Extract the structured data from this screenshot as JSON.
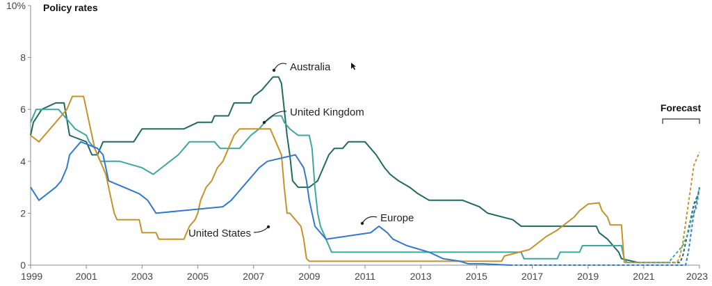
{
  "chart_data": {
    "type": "line",
    "title": "Policy rates",
    "xlabel": "",
    "ylabel": "",
    "xlim": [
      1999,
      2023
    ],
    "ylim": [
      0,
      10
    ],
    "y_ticks": [
      "0",
      "2",
      "4",
      "6",
      "8",
      "10%"
    ],
    "y_tick_values": [
      0,
      2,
      4,
      6,
      8,
      10
    ],
    "x_ticks": [
      "1999",
      "2001",
      "2003",
      "2005",
      "2007",
      "2009",
      "2011",
      "2013",
      "2015",
      "2017",
      "2019",
      "2021",
      "2023"
    ],
    "x_tick_values": [
      1999,
      2001,
      2003,
      2005,
      2007,
      2009,
      2011,
      2013,
      2015,
      2017,
      2019,
      2021,
      2023
    ],
    "forecast_label": "Forecast",
    "forecast_start": 2021.75,
    "grid": false,
    "series": [
      {
        "name": "Australia",
        "color": "#1e6b5e",
        "data": [
          [
            1999,
            5.0
          ],
          [
            1999.1,
            5.5
          ],
          [
            1999.4,
            6.0
          ],
          [
            1999.9,
            6.25
          ],
          [
            2000.2,
            6.25
          ],
          [
            2000.4,
            5.0
          ],
          [
            2001.0,
            4.75
          ],
          [
            2001.2,
            4.25
          ],
          [
            2001.4,
            4.25
          ],
          [
            2001.6,
            4.75
          ],
          [
            2002.5,
            4.75
          ],
          [
            2002.7,
            4.75
          ],
          [
            2003.0,
            5.25
          ],
          [
            2004.5,
            5.25
          ],
          [
            2005.0,
            5.5
          ],
          [
            2005.5,
            5.5
          ],
          [
            2005.6,
            5.75
          ],
          [
            2006.1,
            5.75
          ],
          [
            2006.3,
            6.25
          ],
          [
            2006.9,
            6.25
          ],
          [
            2007.0,
            6.5
          ],
          [
            2007.3,
            6.75
          ],
          [
            2007.5,
            7.0
          ],
          [
            2007.7,
            7.25
          ],
          [
            2007.9,
            7.25
          ],
          [
            2008.0,
            7.0
          ],
          [
            2008.1,
            6.0
          ],
          [
            2008.2,
            5.0
          ],
          [
            2008.3,
            4.25
          ],
          [
            2008.4,
            3.25
          ],
          [
            2008.6,
            3.0
          ],
          [
            2009.0,
            3.0
          ],
          [
            2009.3,
            3.25
          ],
          [
            2009.5,
            3.75
          ],
          [
            2009.7,
            4.25
          ],
          [
            2009.9,
            4.5
          ],
          [
            2010.2,
            4.5
          ],
          [
            2010.4,
            4.75
          ],
          [
            2011.0,
            4.75
          ],
          [
            2011.2,
            4.5
          ],
          [
            2011.4,
            4.25
          ],
          [
            2011.7,
            3.75
          ],
          [
            2011.9,
            3.5
          ],
          [
            2012.2,
            3.25
          ],
          [
            2012.6,
            3.0
          ],
          [
            2012.9,
            2.75
          ],
          [
            2013.3,
            2.5
          ],
          [
            2014.5,
            2.5
          ],
          [
            2015.1,
            2.25
          ],
          [
            2015.4,
            2.0
          ],
          [
            2016.3,
            1.75
          ],
          [
            2016.6,
            1.5
          ],
          [
            2019.3,
            1.5
          ],
          [
            2019.4,
            1.25
          ],
          [
            2019.7,
            1.0
          ],
          [
            2019.9,
            0.75
          ],
          [
            2020.1,
            0.5
          ],
          [
            2020.2,
            0.25
          ],
          [
            2020.8,
            0.1
          ],
          [
            2022.3,
            0.1
          ],
          [
            2022.4,
            0.35
          ],
          [
            2022.5,
            0.85
          ],
          [
            2022.6,
            1.35
          ],
          [
            2022.7,
            1.85
          ],
          [
            2022.8,
            2.35
          ],
          [
            2022.9,
            2.6
          ],
          [
            2023.0,
            2.85
          ]
        ]
      },
      {
        "name": "United Kingdom",
        "color": "#3aa8a0",
        "data": [
          [
            1999,
            5.5
          ],
          [
            1999.2,
            6.0
          ],
          [
            2000.0,
            6.0
          ],
          [
            2000.2,
            5.75
          ],
          [
            2000.4,
            5.5
          ],
          [
            2000.6,
            5.25
          ],
          [
            2001.0,
            5.0
          ],
          [
            2001.1,
            4.75
          ],
          [
            2001.3,
            4.5
          ],
          [
            2001.5,
            4.0
          ],
          [
            2002.2,
            4.0
          ],
          [
            2003.0,
            3.75
          ],
          [
            2003.4,
            3.5
          ],
          [
            2003.7,
            3.75
          ],
          [
            2004.0,
            4.0
          ],
          [
            2004.3,
            4.25
          ],
          [
            2004.5,
            4.5
          ],
          [
            2004.7,
            4.75
          ],
          [
            2005.6,
            4.75
          ],
          [
            2005.8,
            4.5
          ],
          [
            2006.5,
            4.5
          ],
          [
            2006.7,
            4.75
          ],
          [
            2006.9,
            5.0
          ],
          [
            2007.2,
            5.25
          ],
          [
            2007.4,
            5.5
          ],
          [
            2007.7,
            5.75
          ],
          [
            2008.0,
            5.75
          ],
          [
            2008.1,
            5.5
          ],
          [
            2008.3,
            5.25
          ],
          [
            2008.6,
            5.0
          ],
          [
            2009.0,
            5.0
          ],
          [
            2009.1,
            4.5
          ],
          [
            2009.2,
            3.0
          ],
          [
            2009.3,
            2.0
          ],
          [
            2009.4,
            1.5
          ],
          [
            2009.6,
            1.0
          ],
          [
            2009.8,
            0.5
          ],
          [
            2016.6,
            0.5
          ],
          [
            2016.7,
            0.25
          ],
          [
            2017.9,
            0.25
          ],
          [
            2018.0,
            0.5
          ],
          [
            2018.7,
            0.5
          ],
          [
            2018.8,
            0.75
          ],
          [
            2020.2,
            0.75
          ],
          [
            2020.3,
            0.25
          ],
          [
            2020.4,
            0.1
          ],
          [
            2021.9,
            0.1
          ],
          [
            2022.0,
            0.25
          ],
          [
            2022.2,
            0.5
          ],
          [
            2022.4,
            0.75
          ],
          [
            2022.5,
            1.0
          ],
          [
            2022.6,
            1.25
          ],
          [
            2022.7,
            1.75
          ],
          [
            2022.9,
            2.25
          ],
          [
            2023.0,
            3.0
          ]
        ]
      },
      {
        "name": "United States",
        "color": "#c8902a",
        "data": [
          [
            1999,
            5.0
          ],
          [
            1999.3,
            4.75
          ],
          [
            1999.5,
            5.0
          ],
          [
            1999.7,
            5.25
          ],
          [
            1999.9,
            5.5
          ],
          [
            2000.1,
            5.75
          ],
          [
            2000.3,
            6.0
          ],
          [
            2000.5,
            6.5
          ],
          [
            2000.9,
            6.5
          ],
          [
            2001.0,
            6.0
          ],
          [
            2001.1,
            5.5
          ],
          [
            2001.2,
            5.0
          ],
          [
            2001.3,
            4.5
          ],
          [
            2001.5,
            4.0
          ],
          [
            2001.6,
            3.75
          ],
          [
            2001.7,
            3.5
          ],
          [
            2001.8,
            3.0
          ],
          [
            2001.9,
            2.5
          ],
          [
            2002.0,
            2.0
          ],
          [
            2002.1,
            1.75
          ],
          [
            2002.9,
            1.75
          ],
          [
            2003.0,
            1.25
          ],
          [
            2003.5,
            1.25
          ],
          [
            2003.6,
            1.0
          ],
          [
            2004.5,
            1.0
          ],
          [
            2004.6,
            1.25
          ],
          [
            2004.7,
            1.5
          ],
          [
            2004.9,
            1.75
          ],
          [
            2005.0,
            2.0
          ],
          [
            2005.1,
            2.5
          ],
          [
            2005.3,
            3.0
          ],
          [
            2005.5,
            3.25
          ],
          [
            2005.7,
            3.75
          ],
          [
            2005.9,
            4.0
          ],
          [
            2006.1,
            4.5
          ],
          [
            2006.3,
            5.0
          ],
          [
            2006.5,
            5.25
          ],
          [
            2007.6,
            5.25
          ],
          [
            2007.7,
            5.0
          ],
          [
            2007.8,
            4.75
          ],
          [
            2007.9,
            4.5
          ],
          [
            2008.0,
            4.25
          ],
          [
            2008.1,
            3.0
          ],
          [
            2008.2,
            2.0
          ],
          [
            2008.3,
            2.0
          ],
          [
            2008.7,
            1.5
          ],
          [
            2008.8,
            1.0
          ],
          [
            2008.9,
            0.25
          ],
          [
            2009.0,
            0.15
          ],
          [
            2015.9,
            0.15
          ],
          [
            2016.0,
            0.35
          ],
          [
            2016.9,
            0.6
          ],
          [
            2017.2,
            0.85
          ],
          [
            2017.5,
            1.1
          ],
          [
            2017.9,
            1.35
          ],
          [
            2018.2,
            1.6
          ],
          [
            2018.5,
            1.85
          ],
          [
            2018.7,
            2.1
          ],
          [
            2019.0,
            2.35
          ],
          [
            2019.4,
            2.4
          ],
          [
            2019.5,
            2.1
          ],
          [
            2019.7,
            1.85
          ],
          [
            2019.8,
            1.55
          ],
          [
            2020.2,
            1.55
          ],
          [
            2020.3,
            0.1
          ],
          [
            2022.2,
            0.1
          ],
          [
            2022.3,
            0.35
          ],
          [
            2022.4,
            0.85
          ],
          [
            2022.5,
            1.6
          ],
          [
            2022.6,
            2.35
          ],
          [
            2022.7,
            3.1
          ],
          [
            2022.8,
            3.85
          ],
          [
            2022.9,
            4.1
          ],
          [
            2023.0,
            4.35
          ]
        ]
      },
      {
        "name": "Europe",
        "color": "#2f78d0",
        "data": [
          [
            1999,
            3.0
          ],
          [
            1999.3,
            2.5
          ],
          [
            1999.9,
            3.0
          ],
          [
            2000.1,
            3.25
          ],
          [
            2000.3,
            3.75
          ],
          [
            2000.4,
            4.25
          ],
          [
            2000.8,
            4.75
          ],
          [
            2001.4,
            4.5
          ],
          [
            2001.6,
            4.25
          ],
          [
            2001.7,
            3.75
          ],
          [
            2001.8,
            3.25
          ],
          [
            2002.9,
            2.75
          ],
          [
            2003.2,
            2.5
          ],
          [
            2003.5,
            2.0
          ],
          [
            2005.9,
            2.25
          ],
          [
            2006.2,
            2.5
          ],
          [
            2006.4,
            2.75
          ],
          [
            2006.6,
            3.0
          ],
          [
            2006.8,
            3.25
          ],
          [
            2007.0,
            3.5
          ],
          [
            2007.2,
            3.75
          ],
          [
            2007.5,
            4.0
          ],
          [
            2008.5,
            4.25
          ],
          [
            2008.8,
            3.75
          ],
          [
            2008.9,
            3.25
          ],
          [
            2009.0,
            2.5
          ],
          [
            2009.2,
            1.5
          ],
          [
            2009.4,
            1.25
          ],
          [
            2009.6,
            1.0
          ],
          [
            2011.2,
            1.25
          ],
          [
            2011.5,
            1.5
          ],
          [
            2011.8,
            1.25
          ],
          [
            2012.0,
            1.0
          ],
          [
            2012.5,
            0.75
          ],
          [
            2013.3,
            0.5
          ],
          [
            2013.8,
            0.25
          ],
          [
            2014.4,
            0.15
          ],
          [
            2014.7,
            0.05
          ],
          [
            2015.2,
            0.05
          ],
          [
            2016.2,
            0.0
          ],
          [
            2022.5,
            0.0
          ],
          [
            2022.6,
            0.5
          ],
          [
            2022.7,
            1.25
          ],
          [
            2022.8,
            2.0
          ],
          [
            2022.9,
            2.5
          ],
          [
            2023.0,
            3.0
          ]
        ]
      }
    ]
  }
}
